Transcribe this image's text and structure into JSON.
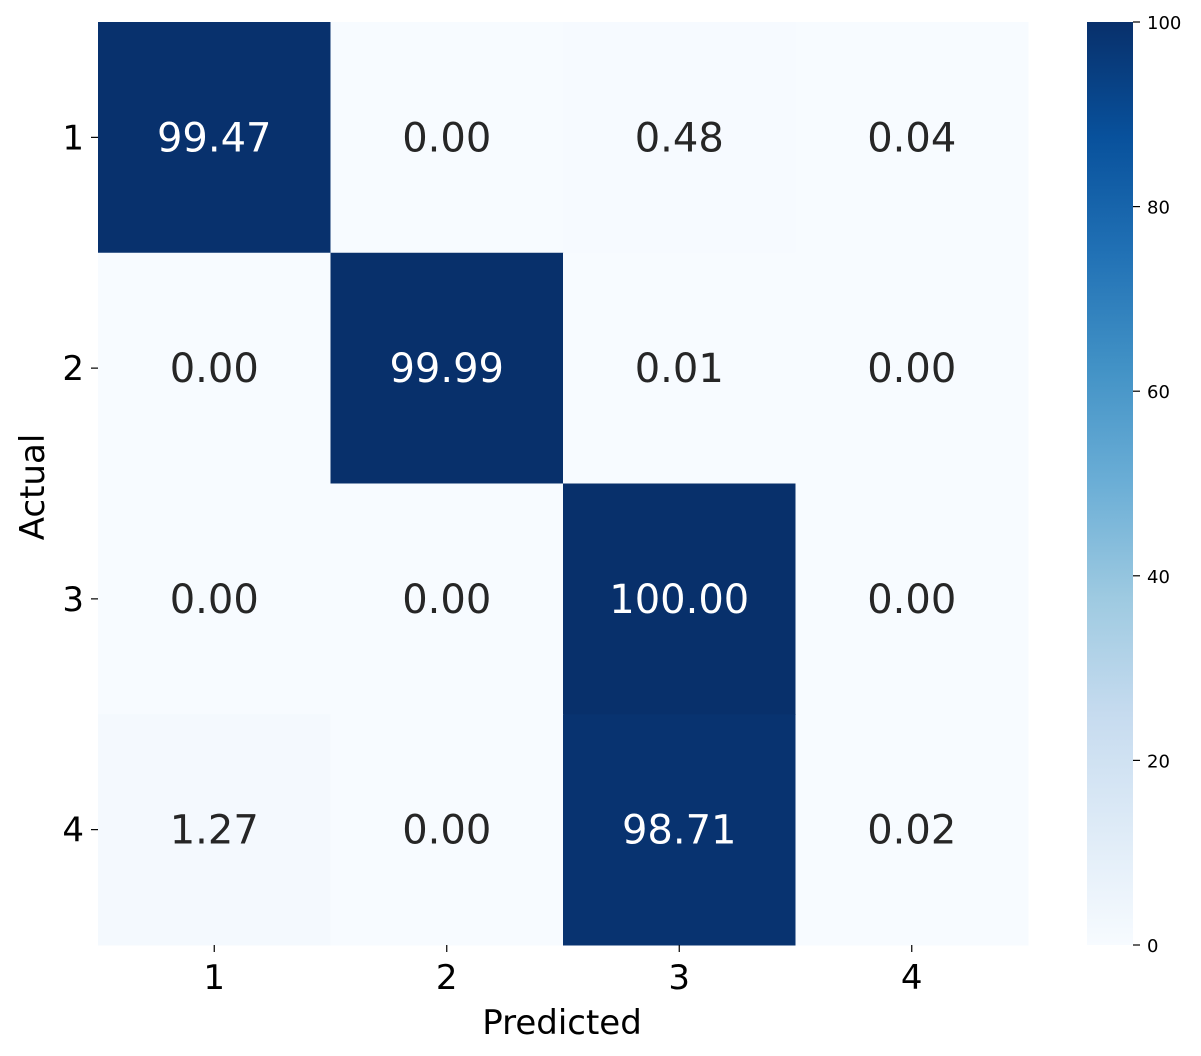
{
  "chart_data": {
    "type": "heatmap",
    "xlabel": "Predicted",
    "ylabel": "Actual",
    "x_categories": [
      "1",
      "2",
      "3",
      "4"
    ],
    "y_categories": [
      "1",
      "2",
      "3",
      "4"
    ],
    "values": [
      [
        99.47,
        0.0,
        0.48,
        0.04
      ],
      [
        0.0,
        99.99,
        0.01,
        0.0
      ],
      [
        0.0,
        0.0,
        100.0,
        0.0
      ],
      [
        1.27,
        0.0,
        98.71,
        0.02
      ]
    ],
    "value_labels": [
      [
        "99.47",
        "0.00",
        "0.48",
        "0.04"
      ],
      [
        "0.00",
        "99.99",
        "0.01",
        "0.00"
      ],
      [
        "0.00",
        "0.00",
        "100.00",
        "0.00"
      ],
      [
        "1.27",
        "0.00",
        "98.71",
        "0.02"
      ]
    ],
    "colormap": "Blues",
    "colorbar": {
      "range": [
        0,
        100
      ],
      "ticks": [
        0,
        20,
        40,
        60,
        80,
        100
      ]
    },
    "colors": {
      "low": "#f7fbff",
      "high": "#08306b",
      "text_dark": "#262626",
      "text_light": "#ffffff"
    }
  }
}
